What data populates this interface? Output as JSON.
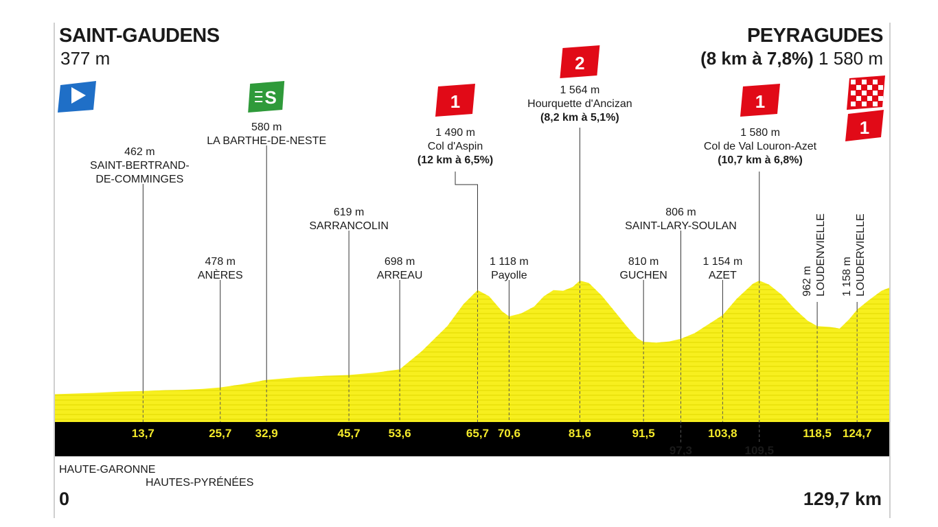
{
  "start": {
    "name": "SAINT-GAUDENS",
    "altitude": "377 m"
  },
  "finish": {
    "name": "PEYRAGUDES",
    "climb": "(8 km à 7,8%)",
    "altitude": "1 580 m"
  },
  "regions": [
    "HAUTE-GARONNE",
    "HAUTES-PYRÉNÉES"
  ],
  "distance": {
    "start": "0",
    "end": "129,7 km"
  },
  "colors": {
    "profile_fill": "#f7ef1e",
    "profile_line": "#d8cf00",
    "band": "#000000",
    "km_text": "#f4ea2a",
    "cat_red": "#e10a17",
    "sprint_green": "#2f9a3a",
    "start_blue": "#1f6fc7"
  },
  "chart_data": {
    "type": "area",
    "xlabel": "",
    "ylabel": "",
    "xlim": [
      0,
      129.7
    ],
    "ylim": [
      200,
      2100
    ],
    "profile": [
      [
        0,
        377
      ],
      [
        6,
        385
      ],
      [
        10,
        393
      ],
      [
        13.7,
        398
      ],
      [
        17,
        402
      ],
      [
        20,
        405
      ],
      [
        23,
        411
      ],
      [
        25.7,
        420
      ],
      [
        29,
        440
      ],
      [
        32.9,
        468
      ],
      [
        38,
        486
      ],
      [
        42,
        494
      ],
      [
        45.7,
        499
      ],
      [
        50,
        515
      ],
      [
        53.6,
        535
      ],
      [
        57,
        650
      ],
      [
        61,
        810
      ],
      [
        63.5,
        950
      ],
      [
        65.7,
        1040
      ],
      [
        67.5,
        1000
      ],
      [
        69.5,
        905
      ],
      [
        70.6,
        872
      ],
      [
        72.5,
        892
      ],
      [
        74.5,
        935
      ],
      [
        76,
        1000
      ],
      [
        77.5,
        1040
      ],
      [
        79,
        1035
      ],
      [
        80.5,
        1060
      ],
      [
        81.6,
        1100
      ],
      [
        83,
        1085
      ],
      [
        85,
        1005
      ],
      [
        87,
        905
      ],
      [
        89,
        805
      ],
      [
        90.5,
        735
      ],
      [
        91.5,
        710
      ],
      [
        93.5,
        705
      ],
      [
        95.5,
        713
      ],
      [
        97.3,
        730
      ],
      [
        99.5,
        767
      ],
      [
        101.5,
        820
      ],
      [
        103.8,
        880
      ],
      [
        106,
        985
      ],
      [
        108.5,
        1080
      ],
      [
        109.5,
        1100
      ],
      [
        111,
        1075
      ],
      [
        113,
        1010
      ],
      [
        115,
        920
      ],
      [
        117,
        845
      ],
      [
        118.5,
        810
      ],
      [
        120.5,
        805
      ],
      [
        122,
        795
      ],
      [
        123.5,
        855
      ],
      [
        124.7,
        915
      ],
      [
        126.5,
        975
      ],
      [
        128.5,
        1035
      ],
      [
        129.7,
        1055
      ]
    ],
    "km_markers": [
      "13,7",
      "25,7",
      "32,9",
      "45,7",
      "53,6",
      "65,7",
      "70,6",
      "81,6",
      "91,5",
      "97,3",
      "103,8",
      "109,5",
      "118,5",
      "124,7"
    ],
    "waypoints": [
      {
        "km": 13.7,
        "alt": "462 m",
        "name": "SAINT-BERTRAND-",
        "name2": "DE-COMMINGES"
      },
      {
        "km": 25.7,
        "alt": "478 m",
        "name": "ANÈRES"
      },
      {
        "km": 32.9,
        "alt": "580 m",
        "name": "LA BARTHE-DE-NESTE",
        "marker": "sprint",
        "marker_label": "S"
      },
      {
        "km": 45.7,
        "alt": "619 m",
        "name": "SARRANCOLIN"
      },
      {
        "km": 53.6,
        "alt": "698 m",
        "name": "ARREAU"
      },
      {
        "km": 65.7,
        "alt": "1 490 m",
        "name": "Col d'Aspin",
        "climb": "(12 km à 6,5%)",
        "marker": "cat",
        "category": "1"
      },
      {
        "km": 70.6,
        "alt": "1 118 m",
        "name": "Payolle"
      },
      {
        "km": 81.6,
        "alt": "1 564 m",
        "name": "Hourquette d'Ancizan",
        "climb": "(8,2 km à 5,1%)",
        "marker": "cat",
        "category": "2"
      },
      {
        "km": 91.5,
        "alt": "810 m",
        "name": "GUCHEN"
      },
      {
        "km": 97.3,
        "alt": "806 m",
        "name": "SAINT-LARY-SOULAN"
      },
      {
        "km": 103.8,
        "alt": "1 154 m",
        "name": "AZET"
      },
      {
        "km": 109.5,
        "alt": "1 580 m",
        "name": "Col de Val Louron-Azet",
        "climb": "(10,7 km à 6,8%)",
        "marker": "cat",
        "category": "1"
      },
      {
        "km": 118.5,
        "alt": "962 m",
        "name": "LOUDENVIELLE",
        "vertical": true
      },
      {
        "km": 124.7,
        "alt": "1 158 m",
        "name": "LOUDERVIELLE",
        "vertical": true
      }
    ],
    "finish_category": "1"
  }
}
